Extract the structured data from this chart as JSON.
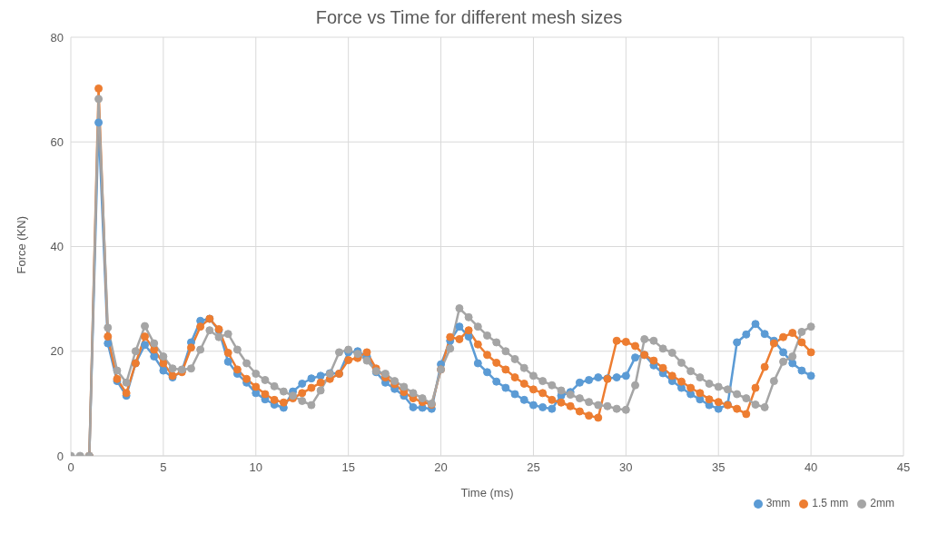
{
  "chart_data": {
    "type": "line",
    "title": "Force vs Time for different mesh sizes",
    "xlabel": "Time (ms)",
    "ylabel": "Force (KN)",
    "x": [
      0,
      0.5,
      1,
      1.5,
      2,
      2.5,
      3,
      3.5,
      4,
      4.5,
      5,
      5.5,
      6,
      6.5,
      7,
      7.5,
      8,
      8.5,
      9,
      9.5,
      10,
      10.5,
      11,
      11.5,
      12,
      12.5,
      13,
      13.5,
      14,
      14.5,
      15,
      15.5,
      16,
      16.5,
      17,
      17.5,
      18,
      18.5,
      19,
      19.5,
      20,
      20.5,
      21,
      21.5,
      22,
      22.5,
      23,
      23.5,
      24,
      24.5,
      25,
      25.5,
      26,
      26.5,
      27,
      27.5,
      28,
      28.5,
      29,
      29.5,
      30,
      30.5,
      31,
      31.5,
      32,
      32.5,
      33,
      33.5,
      34,
      34.5,
      35,
      35.5,
      36,
      36.5,
      37,
      37.5,
      38,
      38.5,
      39,
      39.5,
      40
    ],
    "series": [
      {
        "name": "3mm",
        "color": "#5b9bd5",
        "values": [
          null,
          null,
          0,
          63.7,
          21.5,
          14.3,
          11.5,
          17.7,
          21.2,
          19,
          16.3,
          15,
          16.2,
          21.7,
          25.8,
          26.2,
          24,
          18,
          15.7,
          14,
          12,
          10.8,
          9.8,
          9.2,
          12.3,
          13.8,
          14.8,
          15.3,
          15.8,
          15.7,
          19.8,
          20,
          19,
          16,
          14,
          12.8,
          11.5,
          9.3,
          9.2,
          9,
          17.5,
          22,
          24.7,
          22.8,
          17.7,
          16,
          14.2,
          13,
          11.8,
          10.7,
          9.7,
          9.3,
          9,
          11.5,
          12.2,
          14,
          14.5,
          15,
          14.8,
          15,
          15.3,
          18.8,
          19.3,
          17.3,
          15.8,
          14.3,
          13,
          11.8,
          10.8,
          9.7,
          9,
          9.8,
          21.7,
          23.2,
          25.2,
          23.3,
          22,
          19.8,
          17.7,
          16.3,
          15.3
        ]
      },
      {
        "name": "1.5 mm",
        "color": "#ed7d31",
        "values": [
          null,
          null,
          0,
          70.2,
          22.8,
          14.7,
          12,
          17.7,
          22.8,
          20.3,
          17.7,
          15.3,
          16,
          20.7,
          24.7,
          26.2,
          24.2,
          19.7,
          16.5,
          14.7,
          13.2,
          11.8,
          10.7,
          10.2,
          11,
          12,
          13,
          14,
          14.7,
          15.7,
          18.3,
          18.7,
          19.8,
          16.7,
          15,
          13.7,
          12.2,
          11,
          10.3,
          9.8,
          16.5,
          22.7,
          22.3,
          24,
          21.3,
          19.3,
          17.8,
          16.5,
          15,
          13.8,
          12.7,
          12,
          10.7,
          10.2,
          9.5,
          8.5,
          7.7,
          7.3,
          14.7,
          22,
          21.8,
          21,
          19.3,
          18.2,
          16.8,
          15.3,
          14.2,
          13,
          12,
          10.8,
          10.3,
          9.7,
          9,
          8,
          13,
          17,
          21.5,
          22.7,
          23.5,
          21.7,
          19.8
        ]
      },
      {
        "name": "2mm",
        "color": "#a5a5a5",
        "values": [
          0,
          0,
          0,
          68.2,
          24.5,
          16.3,
          14,
          20,
          24.8,
          21.5,
          19,
          16.7,
          16.5,
          16.7,
          20.3,
          24,
          22.7,
          23.3,
          20.3,
          17.7,
          15.7,
          14.5,
          13.3,
          12.3,
          11.5,
          10.5,
          9.7,
          12.5,
          15.7,
          19.8,
          20.3,
          19.5,
          18.2,
          16.2,
          15.7,
          14.3,
          13.2,
          12,
          11,
          10,
          16.5,
          20.5,
          28.2,
          26.5,
          24.7,
          23,
          21.7,
          20,
          18.5,
          16.8,
          15.3,
          14.3,
          13.5,
          12.5,
          11.7,
          11,
          10.3,
          9.7,
          9.5,
          9,
          8.8,
          13.5,
          22.3,
          22,
          20.5,
          19.7,
          17.8,
          16.2,
          15,
          13.8,
          13.2,
          12.7,
          11.8,
          11,
          9.8,
          9.3,
          14.3,
          18,
          19,
          23.7,
          24.7
        ]
      }
    ],
    "xlim": [
      0,
      45
    ],
    "xticks": [
      0,
      5,
      10,
      15,
      20,
      25,
      30,
      35,
      40,
      45
    ],
    "ylim": [
      0,
      80
    ],
    "yticks": [
      0,
      20,
      40,
      60,
      80
    ],
    "grid": true,
    "legend": "bottom right",
    "marker": "circle",
    "line_style": "solid"
  }
}
